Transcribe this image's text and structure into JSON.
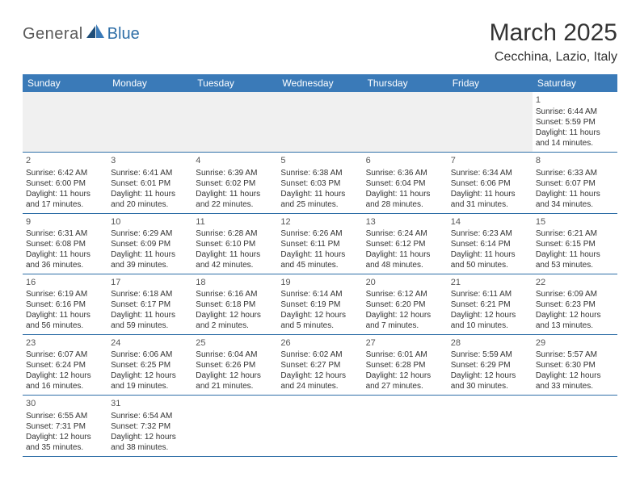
{
  "logo": {
    "general": "General",
    "blue": "Blue"
  },
  "title": "March 2025",
  "location": "Cecchina, Lazio, Italy",
  "colors": {
    "header_bg": "#3a7ab8",
    "header_text": "#ffffff",
    "rule": "#2f6fa7",
    "logo_gray": "#5a5a5a",
    "logo_blue": "#2f6fa7",
    "page_bg": "#ffffff",
    "blank_bg": "#f0f0f0"
  },
  "days_of_week": [
    "Sunday",
    "Monday",
    "Tuesday",
    "Wednesday",
    "Thursday",
    "Friday",
    "Saturday"
  ],
  "weeks": [
    [
      null,
      null,
      null,
      null,
      null,
      null,
      {
        "n": "1",
        "sr": "Sunrise: 6:44 AM",
        "ss": "Sunset: 5:59 PM",
        "dl": "Daylight: 11 hours and 14 minutes."
      }
    ],
    [
      {
        "n": "2",
        "sr": "Sunrise: 6:42 AM",
        "ss": "Sunset: 6:00 PM",
        "dl": "Daylight: 11 hours and 17 minutes."
      },
      {
        "n": "3",
        "sr": "Sunrise: 6:41 AM",
        "ss": "Sunset: 6:01 PM",
        "dl": "Daylight: 11 hours and 20 minutes."
      },
      {
        "n": "4",
        "sr": "Sunrise: 6:39 AM",
        "ss": "Sunset: 6:02 PM",
        "dl": "Daylight: 11 hours and 22 minutes."
      },
      {
        "n": "5",
        "sr": "Sunrise: 6:38 AM",
        "ss": "Sunset: 6:03 PM",
        "dl": "Daylight: 11 hours and 25 minutes."
      },
      {
        "n": "6",
        "sr": "Sunrise: 6:36 AM",
        "ss": "Sunset: 6:04 PM",
        "dl": "Daylight: 11 hours and 28 minutes."
      },
      {
        "n": "7",
        "sr": "Sunrise: 6:34 AM",
        "ss": "Sunset: 6:06 PM",
        "dl": "Daylight: 11 hours and 31 minutes."
      },
      {
        "n": "8",
        "sr": "Sunrise: 6:33 AM",
        "ss": "Sunset: 6:07 PM",
        "dl": "Daylight: 11 hours and 34 minutes."
      }
    ],
    [
      {
        "n": "9",
        "sr": "Sunrise: 6:31 AM",
        "ss": "Sunset: 6:08 PM",
        "dl": "Daylight: 11 hours and 36 minutes."
      },
      {
        "n": "10",
        "sr": "Sunrise: 6:29 AM",
        "ss": "Sunset: 6:09 PM",
        "dl": "Daylight: 11 hours and 39 minutes."
      },
      {
        "n": "11",
        "sr": "Sunrise: 6:28 AM",
        "ss": "Sunset: 6:10 PM",
        "dl": "Daylight: 11 hours and 42 minutes."
      },
      {
        "n": "12",
        "sr": "Sunrise: 6:26 AM",
        "ss": "Sunset: 6:11 PM",
        "dl": "Daylight: 11 hours and 45 minutes."
      },
      {
        "n": "13",
        "sr": "Sunrise: 6:24 AM",
        "ss": "Sunset: 6:12 PM",
        "dl": "Daylight: 11 hours and 48 minutes."
      },
      {
        "n": "14",
        "sr": "Sunrise: 6:23 AM",
        "ss": "Sunset: 6:14 PM",
        "dl": "Daylight: 11 hours and 50 minutes."
      },
      {
        "n": "15",
        "sr": "Sunrise: 6:21 AM",
        "ss": "Sunset: 6:15 PM",
        "dl": "Daylight: 11 hours and 53 minutes."
      }
    ],
    [
      {
        "n": "16",
        "sr": "Sunrise: 6:19 AM",
        "ss": "Sunset: 6:16 PM",
        "dl": "Daylight: 11 hours and 56 minutes."
      },
      {
        "n": "17",
        "sr": "Sunrise: 6:18 AM",
        "ss": "Sunset: 6:17 PM",
        "dl": "Daylight: 11 hours and 59 minutes."
      },
      {
        "n": "18",
        "sr": "Sunrise: 6:16 AM",
        "ss": "Sunset: 6:18 PM",
        "dl": "Daylight: 12 hours and 2 minutes."
      },
      {
        "n": "19",
        "sr": "Sunrise: 6:14 AM",
        "ss": "Sunset: 6:19 PM",
        "dl": "Daylight: 12 hours and 5 minutes."
      },
      {
        "n": "20",
        "sr": "Sunrise: 6:12 AM",
        "ss": "Sunset: 6:20 PM",
        "dl": "Daylight: 12 hours and 7 minutes."
      },
      {
        "n": "21",
        "sr": "Sunrise: 6:11 AM",
        "ss": "Sunset: 6:21 PM",
        "dl": "Daylight: 12 hours and 10 minutes."
      },
      {
        "n": "22",
        "sr": "Sunrise: 6:09 AM",
        "ss": "Sunset: 6:23 PM",
        "dl": "Daylight: 12 hours and 13 minutes."
      }
    ],
    [
      {
        "n": "23",
        "sr": "Sunrise: 6:07 AM",
        "ss": "Sunset: 6:24 PM",
        "dl": "Daylight: 12 hours and 16 minutes."
      },
      {
        "n": "24",
        "sr": "Sunrise: 6:06 AM",
        "ss": "Sunset: 6:25 PM",
        "dl": "Daylight: 12 hours and 19 minutes."
      },
      {
        "n": "25",
        "sr": "Sunrise: 6:04 AM",
        "ss": "Sunset: 6:26 PM",
        "dl": "Daylight: 12 hours and 21 minutes."
      },
      {
        "n": "26",
        "sr": "Sunrise: 6:02 AM",
        "ss": "Sunset: 6:27 PM",
        "dl": "Daylight: 12 hours and 24 minutes."
      },
      {
        "n": "27",
        "sr": "Sunrise: 6:01 AM",
        "ss": "Sunset: 6:28 PM",
        "dl": "Daylight: 12 hours and 27 minutes."
      },
      {
        "n": "28",
        "sr": "Sunrise: 5:59 AM",
        "ss": "Sunset: 6:29 PM",
        "dl": "Daylight: 12 hours and 30 minutes."
      },
      {
        "n": "29",
        "sr": "Sunrise: 5:57 AM",
        "ss": "Sunset: 6:30 PM",
        "dl": "Daylight: 12 hours and 33 minutes."
      }
    ],
    [
      {
        "n": "30",
        "sr": "Sunrise: 6:55 AM",
        "ss": "Sunset: 7:31 PM",
        "dl": "Daylight: 12 hours and 35 minutes."
      },
      {
        "n": "31",
        "sr": "Sunrise: 6:54 AM",
        "ss": "Sunset: 7:32 PM",
        "dl": "Daylight: 12 hours and 38 minutes."
      },
      null,
      null,
      null,
      null,
      null
    ]
  ]
}
